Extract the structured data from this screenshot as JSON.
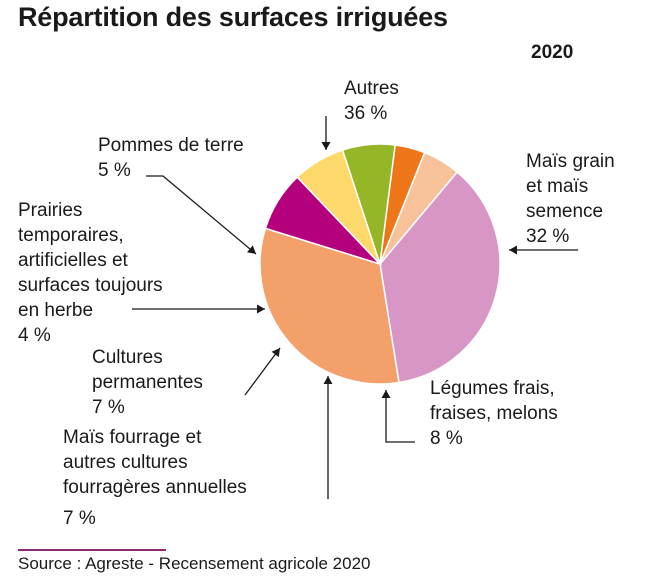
{
  "header": {
    "title": "Répartition des surfaces irriguées",
    "year": "2020"
  },
  "footer": {
    "source": "Source : Agreste - Recensement agricole 2020"
  },
  "colors": {
    "source_rule": "#8b2a6f",
    "leader": "#1a1a1a"
  },
  "chart_data": {
    "type": "pie",
    "title": "Répartition des surfaces irriguées",
    "subtitle": "2020",
    "unit": "%",
    "slices": [
      {
        "label": "Autres",
        "value": 36,
        "value_label": "36 %",
        "color": "#d896c6"
      },
      {
        "label": "Maïs grain et maïs semence",
        "value": 32,
        "value_label": "32 %",
        "color": "#f3a06a"
      },
      {
        "label": "Légumes frais, fraises, melons",
        "value": 8,
        "value_label": "8 %",
        "color": "#b5007e"
      },
      {
        "label": "Maïs fourrage et autres cultures fourragères annuelles",
        "value": 7,
        "value_label": "7 %",
        "color": "#fdd96b"
      },
      {
        "label": "Cultures permanentes",
        "value": 7,
        "value_label": "7 %",
        "color": "#95b626"
      },
      {
        "label": "Prairies temporaires, artificielles et surfaces toujours en herbe",
        "value": 4,
        "value_label": "4 %",
        "color": "#ee7518"
      },
      {
        "label": "Pommes de terre",
        "value": 5,
        "value_label": "5 %",
        "color": "#f7c29a"
      }
    ],
    "label_lines": [
      [
        "Autres",
        "36 %"
      ],
      [
        "Maïs grain",
        "et maïs",
        "semence",
        "32 %"
      ],
      [
        "Légumes frais,",
        "fraises, melons",
        "8 %"
      ],
      [
        "Maïs fourrage et",
        "autres cultures",
        "fourragères annuelles",
        "7 %"
      ],
      [
        "Cultures",
        "permanentes",
        "7 %"
      ],
      [
        "Prairies",
        "temporaires,",
        "artificielles et",
        "surfaces toujours",
        "en herbe",
        "4 %"
      ],
      [
        "Pommes de terre",
        "5 %"
      ]
    ]
  }
}
